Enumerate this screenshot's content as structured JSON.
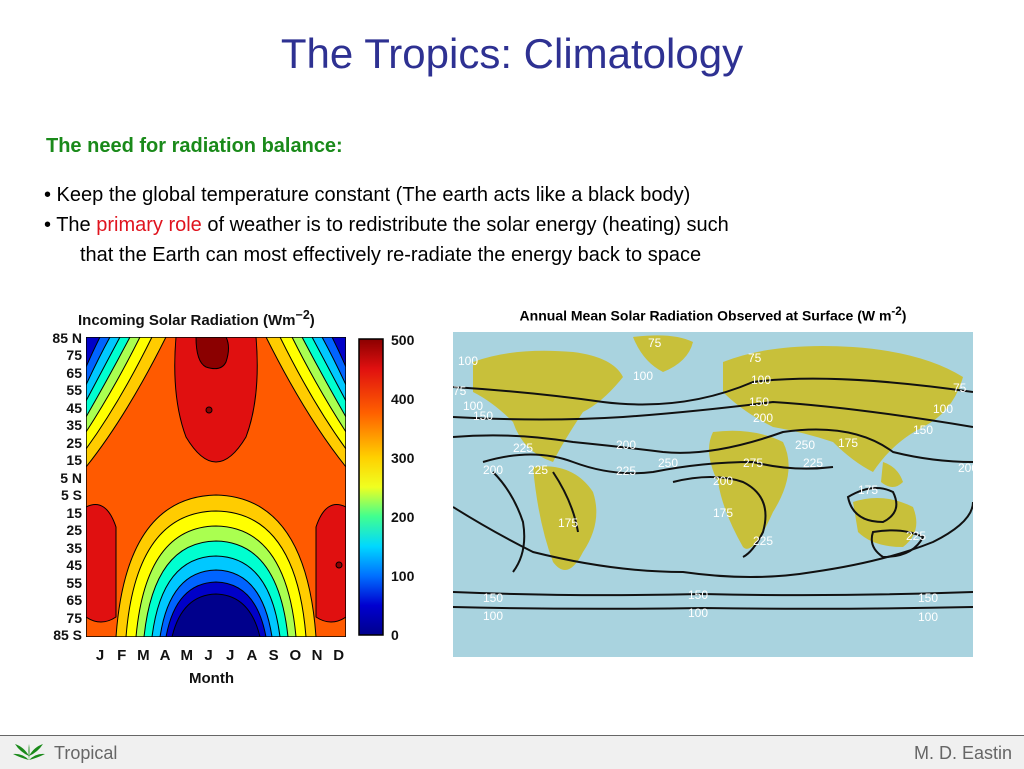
{
  "slide": {
    "title": "The Tropics: Climatology",
    "subhead": "The need for radiation balance:",
    "bullet1": "• Keep the global temperature constant (The earth acts like a black body)",
    "bullet2_pre": "• The ",
    "bullet2_highlight": "primary role",
    "bullet2_post": " of weather is to redistribute the solar energy (heating) such",
    "bullet2_cont": "that the Earth can most effectively re-radiate the energy back to space"
  },
  "left_chart": {
    "title": "Incoming Solar Radiation (Wm",
    "title_sup": "−2",
    "title_end": ")",
    "xlabel": "Month",
    "lat_labels": [
      "85 N",
      "75",
      "65",
      "55",
      "45",
      "35",
      "25",
      "15",
      "5 N",
      "5 S",
      "15",
      "25",
      "35",
      "45",
      "55",
      "65",
      "75",
      "85 S"
    ],
    "months": [
      "J",
      "F",
      "M",
      "A",
      "M",
      "J",
      "J",
      "A",
      "S",
      "O",
      "N",
      "D"
    ],
    "colorbar_ticks": [
      "500",
      "400",
      "300",
      "200",
      "100",
      "0"
    ],
    "colors": {
      "high": "#e01010",
      "mid": "#ff5a00",
      "low": "#00008c"
    }
  },
  "right_chart": {
    "title": "Annual Mean Solar Radiation Observed at Surface (W m",
    "title_sup": "-2",
    "title_end": ")",
    "contour_labels": [
      {
        "text": "100"
      },
      {
        "text": "75"
      },
      {
        "text": "100"
      },
      {
        "text": "150"
      },
      {
        "text": "75"
      },
      {
        "text": "100"
      },
      {
        "text": "75"
      },
      {
        "text": "100"
      },
      {
        "text": "150"
      },
      {
        "text": "200"
      },
      {
        "text": "200"
      },
      {
        "text": "225"
      },
      {
        "text": "225"
      },
      {
        "text": "200"
      },
      {
        "text": "225"
      },
      {
        "text": "250"
      },
      {
        "text": "275"
      },
      {
        "text": "250"
      },
      {
        "text": "225"
      },
      {
        "text": "175"
      },
      {
        "text": "200"
      },
      {
        "text": "175"
      },
      {
        "text": "175"
      },
      {
        "text": "200"
      },
      {
        "text": "175"
      },
      {
        "text": "225"
      },
      {
        "text": "225"
      },
      {
        "text": "150"
      },
      {
        "text": "100"
      },
      {
        "text": "150"
      },
      {
        "text": "100"
      },
      {
        "text": "150"
      },
      {
        "text": "100"
      },
      {
        "text": "75"
      },
      {
        "text": "100"
      },
      {
        "text": "150"
      }
    ],
    "colors": {
      "ocean": "#a9d3df",
      "land": "#c8c03a"
    }
  },
  "footer": {
    "left": "Tropical",
    "right": "M. D. Eastin"
  }
}
